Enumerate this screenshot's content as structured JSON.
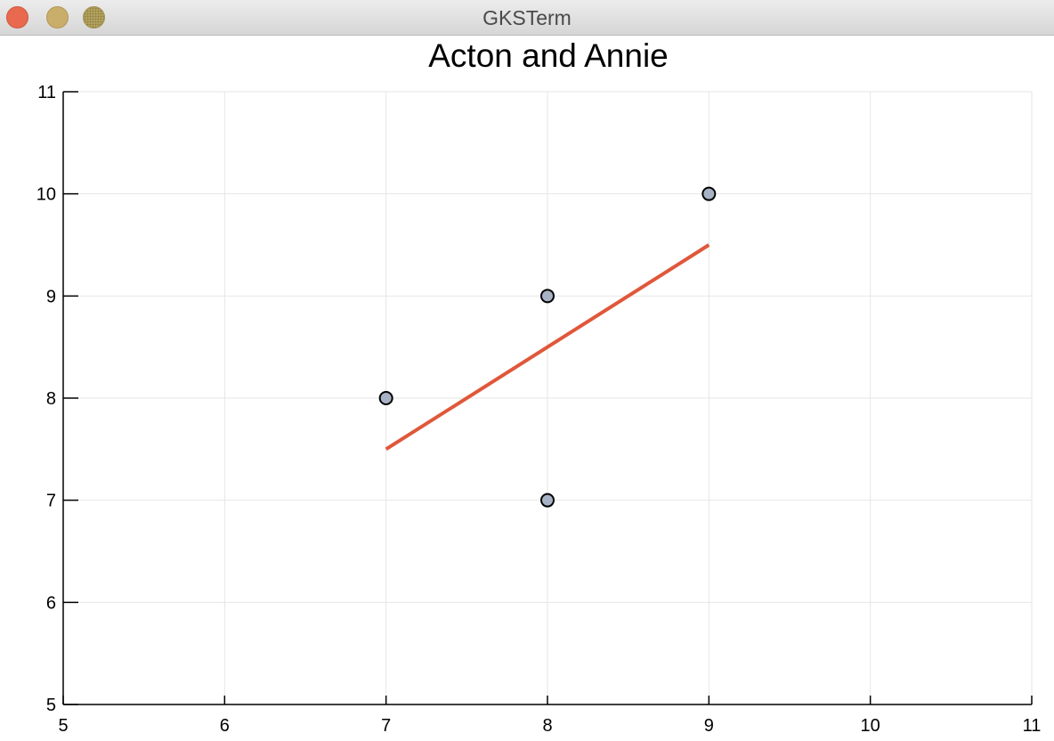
{
  "window": {
    "title": "GKSTerm"
  },
  "colors": {
    "fit_line": "#e0573a",
    "point_fill": "#a7b3c4",
    "point_stroke": "#000000",
    "grid": "#e6e6e6",
    "axis": "#000000"
  },
  "chart_data": {
    "type": "scatter",
    "title": "Acton and Annie",
    "xlabel": "",
    "ylabel": "",
    "xlim": [
      5,
      11
    ],
    "ylim": [
      5,
      11
    ],
    "xticks": [
      5,
      6,
      7,
      8,
      9,
      10,
      11
    ],
    "yticks": [
      5,
      6,
      7,
      8,
      9,
      10,
      11
    ],
    "grid": true,
    "legend": "none",
    "series": [
      {
        "type": "scatter",
        "points": [
          [
            7,
            8
          ],
          [
            8,
            9
          ],
          [
            8,
            7
          ],
          [
            9,
            10
          ]
        ]
      },
      {
        "type": "line",
        "points": [
          [
            7,
            7.5
          ],
          [
            9,
            9.5
          ]
        ]
      }
    ]
  }
}
